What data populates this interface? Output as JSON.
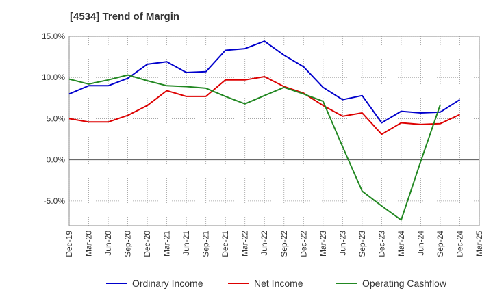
{
  "chart_data": {
    "type": "line",
    "title": "[4534]  Trend of Margin",
    "xlabel": "",
    "ylabel": "",
    "ylim": [
      -8,
      15
    ],
    "yticks": [
      15,
      10,
      5,
      0,
      -5
    ],
    "ytick_labels": [
      "15.0%",
      "10.0%",
      "5.0%",
      "0.0%",
      "-5.0%"
    ],
    "categories": [
      "Dec-19",
      "Mar-20",
      "Jun-20",
      "Sep-20",
      "Dec-20",
      "Mar-21",
      "Jun-21",
      "Sep-21",
      "Dec-21",
      "Mar-22",
      "Jun-22",
      "Sep-22",
      "Dec-22",
      "Mar-23",
      "Jun-23",
      "Sep-23",
      "Dec-23",
      "Mar-24",
      "Jun-24",
      "Sep-24",
      "Dec-24",
      "Mar-25"
    ],
    "grid": true,
    "legend_position": "bottom",
    "series": [
      {
        "name": "Ordinary Income",
        "color": "#0000cc",
        "values": [
          8.0,
          9.0,
          9.0,
          9.9,
          11.6,
          11.9,
          10.6,
          10.7,
          13.3,
          13.5,
          14.4,
          12.7,
          11.3,
          8.8,
          7.3,
          7.8,
          4.5,
          5.9,
          5.7,
          5.8,
          7.3,
          null
        ]
      },
      {
        "name": "Net Income",
        "color": "#dd0000",
        "values": [
          5.0,
          4.6,
          4.6,
          5.4,
          6.6,
          8.4,
          7.7,
          7.7,
          9.7,
          9.7,
          10.1,
          8.9,
          8.1,
          6.6,
          5.3,
          5.7,
          3.1,
          4.5,
          4.3,
          4.4,
          5.5,
          null
        ]
      },
      {
        "name": "Operating Cashflow",
        "color": "#228822",
        "values": [
          9.8,
          9.2,
          9.7,
          10.3,
          9.6,
          9.0,
          8.9,
          8.7,
          7.7,
          6.8,
          7.8,
          8.8,
          8.0,
          7.1,
          1.6,
          -3.8,
          -5.6,
          -7.3,
          -0.2,
          6.7,
          null,
          null
        ]
      }
    ]
  }
}
